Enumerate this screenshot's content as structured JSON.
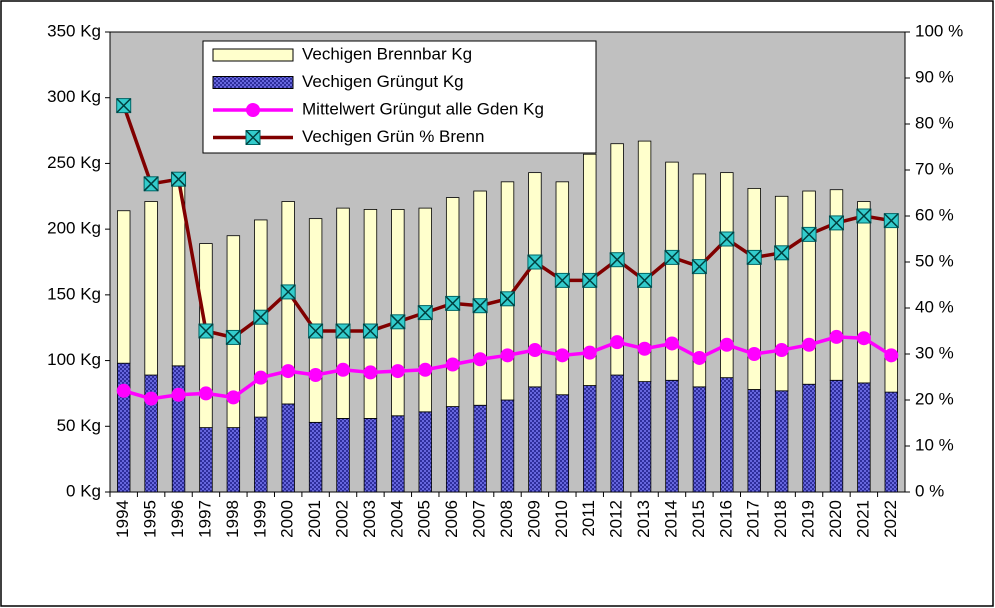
{
  "chart_data": {
    "type": "bar",
    "categories": [
      "1994",
      "1995",
      "1996",
      "1997",
      "1998",
      "1999",
      "2000",
      "2001",
      "2002",
      "2003",
      "2004",
      "2005",
      "2006",
      "2007",
      "2008",
      "2009",
      "2010",
      "2011",
      "2012",
      "2013",
      "2014",
      "2015",
      "2016",
      "2017",
      "2018",
      "2019",
      "2020",
      "2021",
      "2022"
    ],
    "series": [
      {
        "name": "Vechigen Brennbar Kg",
        "type": "bar",
        "stack": true,
        "color": "#ffffcc",
        "values": [
          116,
          132,
          141,
          140,
          146,
          150,
          154,
          155,
          160,
          159,
          157,
          155,
          159,
          163,
          166,
          163,
          162,
          176,
          176,
          183,
          166,
          162,
          156,
          153,
          148,
          147,
          145,
          138,
          129
        ]
      },
      {
        "name": "Vechigen Grüngut Kg",
        "type": "bar",
        "stack": true,
        "color": "#6666dd",
        "values": [
          98,
          89,
          96,
          49,
          49,
          57,
          67,
          53,
          56,
          56,
          58,
          61,
          65,
          66,
          70,
          80,
          74,
          81,
          89,
          84,
          85,
          80,
          87,
          78,
          77,
          82,
          85,
          83,
          76
        ]
      },
      {
        "name": "Mittelwert Grüngut alle Gden Kg",
        "type": "line",
        "color": "#ff00ff",
        "marker": "circle",
        "values": [
          77,
          71,
          74,
          75,
          72,
          87,
          92,
          89,
          93,
          91,
          92,
          93,
          97,
          101,
          104,
          108,
          104,
          106,
          114,
          109,
          113,
          102,
          112,
          105,
          108,
          112,
          118,
          117,
          104
        ]
      },
      {
        "name": "Vechigen Grün % Brenn",
        "type": "line",
        "color": "#800000",
        "marker": "square-x",
        "marker_color": "#33cccc",
        "axis": "y2",
        "values": [
          84,
          67,
          68,
          35,
          33.6,
          38,
          43.5,
          35,
          35,
          35,
          37,
          39,
          41,
          40.5,
          42,
          50,
          46,
          46,
          50.5,
          46,
          51,
          49,
          55,
          51,
          52,
          56,
          58.5,
          60,
          59
        ]
      }
    ],
    "ylim": [
      0,
      350
    ],
    "yticks": [
      {
        "value": 0,
        "label": "0 Kg"
      },
      {
        "value": 50,
        "label": "50 Kg"
      },
      {
        "value": 100,
        "label": "100 Kg"
      },
      {
        "value": 150,
        "label": "150 Kg"
      },
      {
        "value": 200,
        "label": "200 Kg"
      },
      {
        "value": 250,
        "label": "250 Kg"
      },
      {
        "value": 300,
        "label": "300 Kg"
      },
      {
        "value": 350,
        "label": "350 Kg"
      }
    ],
    "y2lim": [
      0,
      100
    ],
    "y2ticks": [
      {
        "value": 0,
        "label": "0 %"
      },
      {
        "value": 10,
        "label": "10 %"
      },
      {
        "value": 20,
        "label": "20 %"
      },
      {
        "value": 30,
        "label": "30 %"
      },
      {
        "value": 40,
        "label": "40 %"
      },
      {
        "value": 50,
        "label": "50 %"
      },
      {
        "value": 60,
        "label": "60 %"
      },
      {
        "value": 70,
        "label": "70 %"
      },
      {
        "value": 80,
        "label": "80 %"
      },
      {
        "value": 90,
        "label": "90 %"
      },
      {
        "value": 100,
        "label": "100 %"
      }
    ],
    "plot_background": "#c0c0c0",
    "grid": false
  }
}
